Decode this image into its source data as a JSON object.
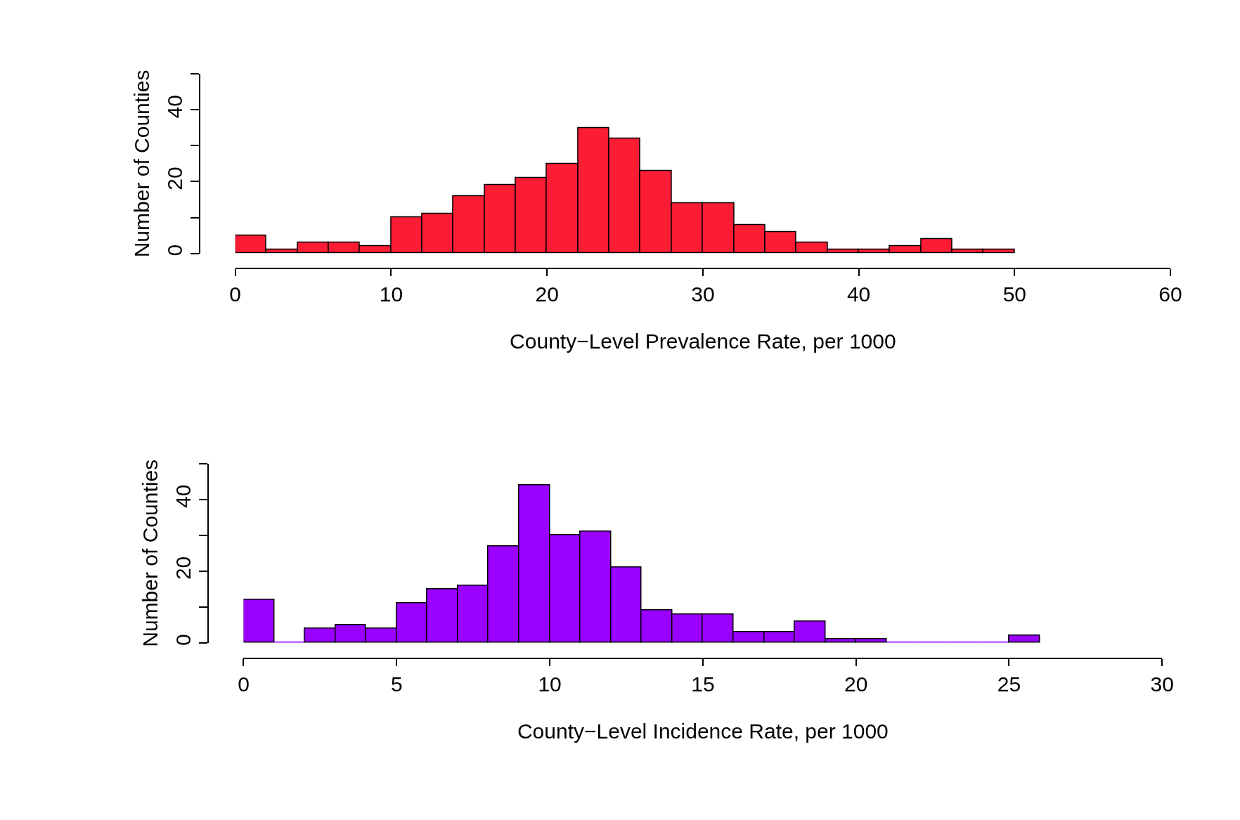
{
  "chart_data": [
    {
      "type": "histogram",
      "xlabel": "County−Level Prevalence Rate, per 1000",
      "ylabel": "Number of Counties",
      "color": "#fc1c34",
      "bins": [
        0,
        2,
        4,
        6,
        8,
        10,
        12,
        14,
        16,
        18,
        20,
        22,
        24,
        26,
        28,
        30,
        32,
        34,
        36,
        38,
        40,
        42,
        44,
        46,
        48,
        50
      ],
      "values": [
        5,
        1,
        3,
        3,
        2,
        10,
        11,
        16,
        19,
        21,
        25,
        35,
        32,
        23,
        14,
        14,
        8,
        6,
        3,
        1,
        1,
        2,
        4,
        1,
        1
      ],
      "xlim": [
        0,
        60
      ],
      "xticks": [
        0,
        10,
        20,
        30,
        40,
        50,
        60
      ],
      "ylim": [
        0,
        50
      ],
      "yticks": [
        0,
        20,
        40
      ]
    },
    {
      "type": "histogram",
      "xlabel": "County−Level Incidence Rate, per 1000",
      "ylabel": "Number of Counties",
      "color": "#9900ff",
      "bins": [
        0,
        1,
        2,
        3,
        4,
        5,
        6,
        7,
        8,
        9,
        10,
        11,
        12,
        13,
        14,
        15,
        16,
        17,
        18,
        19,
        20,
        21,
        22,
        23,
        24,
        25,
        26
      ],
      "values": [
        12,
        0,
        4,
        5,
        4,
        11,
        15,
        16,
        27,
        44,
        30,
        31,
        21,
        9,
        8,
        8,
        3,
        3,
        6,
        1,
        1,
        0,
        0,
        0,
        0,
        2
      ],
      "xlim": [
        0,
        30
      ],
      "xticks": [
        0,
        5,
        10,
        15,
        20,
        25,
        30
      ],
      "ylim": [
        0,
        50
      ],
      "yticks": [
        0,
        20,
        40
      ]
    }
  ]
}
